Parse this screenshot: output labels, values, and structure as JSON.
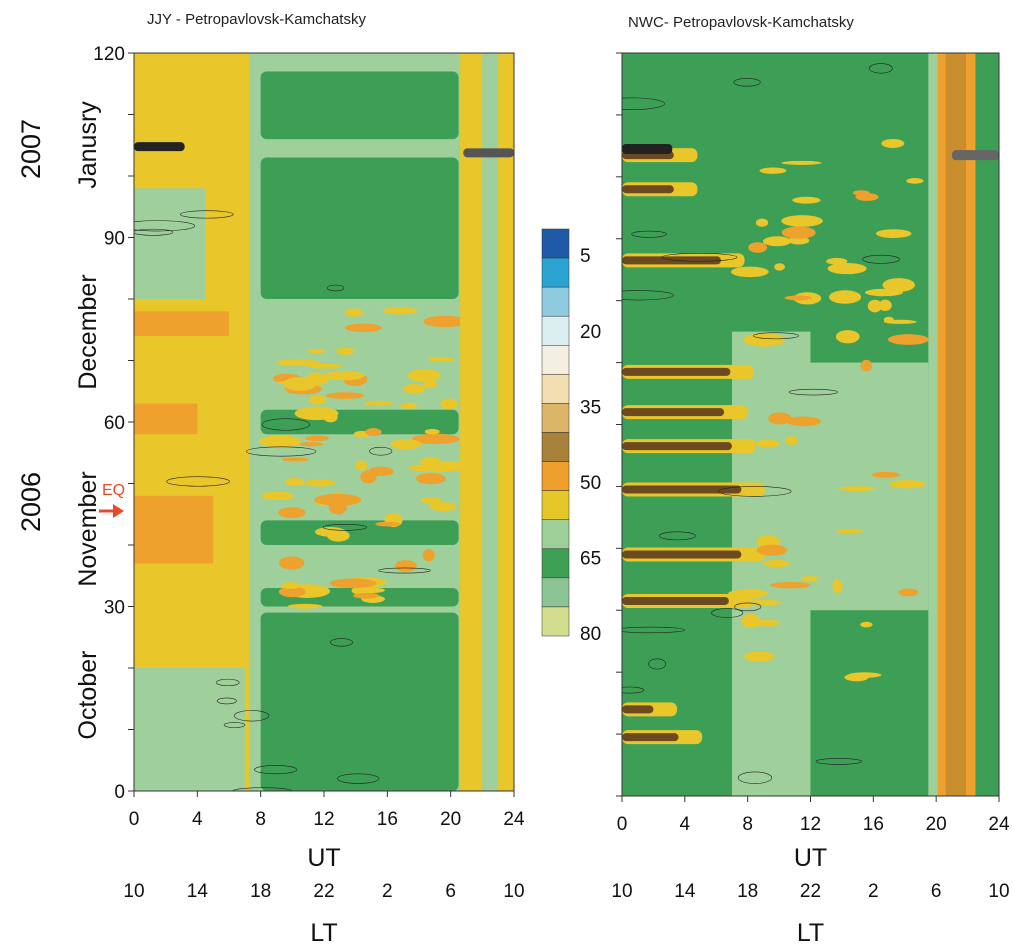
{
  "chart_data": [
    {
      "type": "heatmap",
      "title": "JJY - Petropavlovsk-Kamchatsky",
      "xlabel": "UT",
      "x2label": "LT",
      "x": [
        0,
        4,
        8,
        12,
        16,
        20,
        24
      ],
      "x_ticks": [
        "0",
        "4",
        "8",
        "12",
        "16",
        "20",
        "24"
      ],
      "x2_ticks": [
        "10",
        "14",
        "18",
        "22",
        "2",
        "6",
        "10"
      ],
      "xlim": [
        0,
        24
      ],
      "ylim": [
        0,
        120
      ],
      "y_ticks": [
        "0",
        "30",
        "60",
        "90",
        "120"
      ],
      "y_minor_step": 10,
      "months": [
        "October",
        "November",
        "December",
        "Janusry"
      ],
      "years": [
        "2006",
        "2007"
      ],
      "event": {
        "label": "EQ",
        "day": 45
      },
      "grid": false
    },
    {
      "type": "heatmap",
      "title": "NWC- Petropavlovsk-Kamchatsky",
      "xlabel": "UT",
      "x2label": "LT",
      "x": [
        0,
        4,
        8,
        12,
        16,
        20,
        24
      ],
      "x_ticks": [
        "0",
        "4",
        "8",
        "12",
        "16",
        "20",
        "24"
      ],
      "x2_ticks": [
        "10",
        "14",
        "18",
        "22",
        "2",
        "6",
        "10"
      ],
      "xlim": [
        0,
        24
      ],
      "ylim": [
        0,
        120
      ],
      "y_minor_step": 10,
      "grid": false
    }
  ],
  "colorbar": {
    "labels": [
      "5",
      "20",
      "35",
      "50",
      "65",
      "80"
    ],
    "colors": [
      "#1e5aa8",
      "#2aa3d2",
      "#8fcbe0",
      "#dbeff2",
      "#f4f0e1",
      "#f2deb0",
      "#dcb46a",
      "#a8813a",
      "#efa02c",
      "#e6c72a",
      "#9fcf98",
      "#3da055",
      "#8cc495",
      "#d2dd8d"
    ]
  },
  "palette": {
    "base_yellow": "#e9c72a",
    "light_green": "#9fcf9b",
    "mid_green": "#3d9e55",
    "orange": "#efa12d",
    "dark_brown": "#3b2a14"
  }
}
